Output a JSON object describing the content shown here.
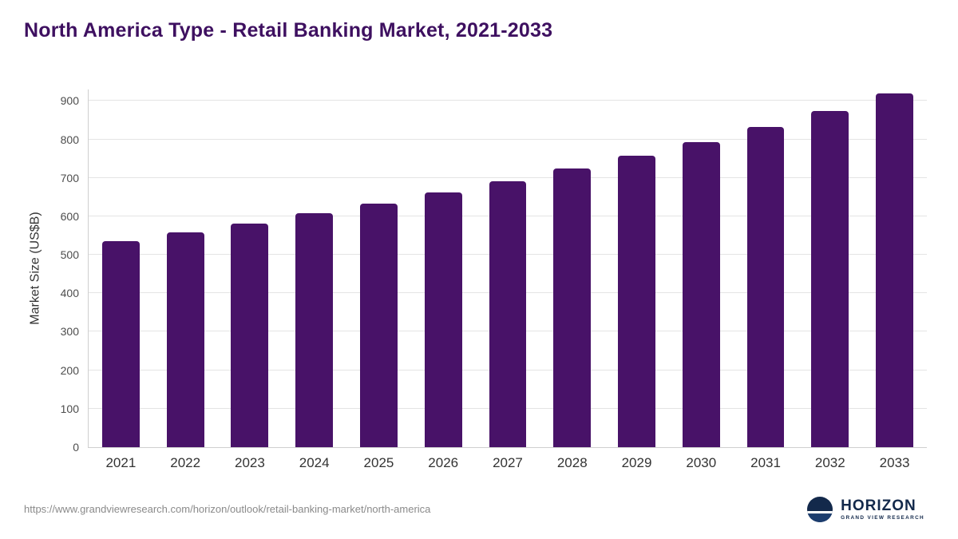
{
  "page": {
    "title": "North America Type - Retail Banking Market, 2021-2033",
    "source_url": "https://www.grandviewresearch.com/horizon/outlook/retail-banking-market/north-america"
  },
  "logo": {
    "name": "HORIZON",
    "subtitle": "GRAND VIEW RESEARCH",
    "icon": "horizon-circle-icon"
  },
  "chart_data": {
    "type": "bar",
    "title": "North America Type - Retail Banking Market, 2021-2033",
    "xlabel": "",
    "ylabel": "Market Size (US$B)",
    "categories": [
      "2021",
      "2022",
      "2023",
      "2024",
      "2025",
      "2026",
      "2027",
      "2028",
      "2029",
      "2030",
      "2031",
      "2032",
      "2033"
    ],
    "values": [
      535,
      558,
      582,
      608,
      634,
      662,
      692,
      724,
      758,
      794,
      833,
      875,
      920
    ],
    "ylim": [
      0,
      930
    ],
    "yticks": [
      0,
      100,
      200,
      300,
      400,
      500,
      600,
      700,
      800,
      900
    ],
    "grid": "horizontal",
    "legend": "none",
    "bar_color": "#481268"
  },
  "colors": {
    "bar": "#481268",
    "title": "#3e1060",
    "grid": "#e4e4e4",
    "axis_line": "#cfcfcf",
    "tick_text": "#4d4d4d",
    "label_text": "#333333",
    "source_text": "#8a8a8a",
    "logo_navy": "#13294b"
  }
}
